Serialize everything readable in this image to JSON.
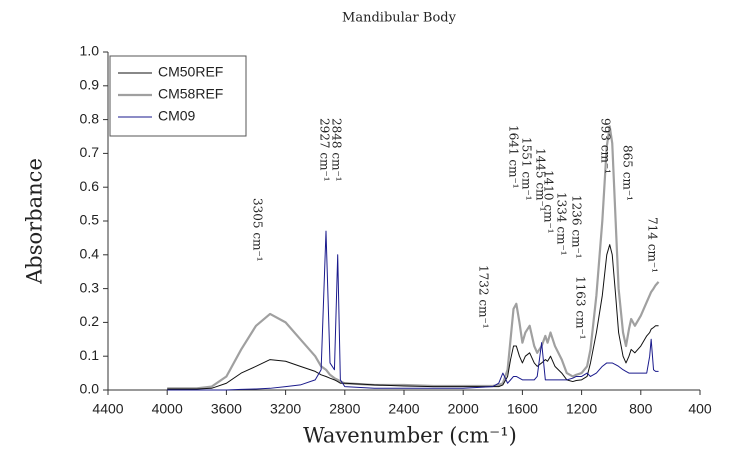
{
  "chart_data": {
    "type": "line",
    "title": "Mandibular Body",
    "x_label": "Wavenumber (cm⁻¹)",
    "y_label": "Absorbance",
    "xlim": [
      4400,
      400
    ],
    "xticks": [
      4400,
      4000,
      3600,
      3200,
      2800,
      2400,
      2000,
      1600,
      1200,
      800,
      400
    ],
    "ylim": [
      0,
      1
    ],
    "yticks": [
      {
        "value": 0,
        "label": "0.0"
      },
      0.1,
      0.2,
      0.3,
      0.4,
      0.5,
      0.6,
      0.7,
      0.8,
      0.9,
      {
        "value": 1,
        "label": "1.0"
      }
    ],
    "legend": "upper left",
    "grid": false,
    "x": [
      4000,
      3800,
      3700,
      3600,
      3500,
      3400,
      3305,
      3200,
      3100,
      3000,
      2960,
      2927,
      2900,
      2870,
      2848,
      2830,
      2800,
      2600,
      2400,
      2200,
      2000,
      1800,
      1760,
      1732,
      1700,
      1680,
      1660,
      1641,
      1620,
      1600,
      1580,
      1551,
      1520,
      1500,
      1470,
      1445,
      1430,
      1410,
      1380,
      1334,
      1300,
      1260,
      1236,
      1200,
      1163,
      1140,
      1100,
      1060,
      1030,
      1010,
      993,
      970,
      950,
      920,
      900,
      880,
      865,
      840,
      800,
      760,
      740,
      730,
      714,
      700,
      680
    ],
    "series": [
      {
        "name": "CM50REF",
        "color": "#111111",
        "width": 1,
        "values": [
          0.003,
          0.003,
          0.005,
          0.02,
          0.05,
          0.07,
          0.09,
          0.085,
          0.07,
          0.055,
          0.045,
          0.04,
          0.035,
          0.03,
          0.025,
          0.02,
          0.02,
          0.015,
          0.012,
          0.01,
          0.01,
          0.01,
          0.01,
          0.015,
          0.04,
          0.09,
          0.13,
          0.13,
          0.1,
          0.08,
          0.1,
          0.11,
          0.08,
          0.07,
          0.08,
          0.09,
          0.085,
          0.1,
          0.07,
          0.05,
          0.03,
          0.025,
          0.028,
          0.03,
          0.04,
          0.08,
          0.17,
          0.28,
          0.4,
          0.43,
          0.4,
          0.28,
          0.17,
          0.1,
          0.08,
          0.1,
          0.12,
          0.11,
          0.13,
          0.16,
          0.17,
          0.18,
          0.185,
          0.19,
          0.19
        ]
      },
      {
        "name": "CM58REF",
        "color": "#a0a0a0",
        "width": 2.2,
        "values": [
          0.005,
          0.005,
          0.01,
          0.04,
          0.12,
          0.19,
          0.225,
          0.2,
          0.15,
          0.1,
          0.07,
          0.06,
          0.045,
          0.035,
          0.03,
          0.025,
          0.02,
          0.015,
          0.015,
          0.012,
          0.012,
          0.012,
          0.015,
          0.02,
          0.06,
          0.15,
          0.24,
          0.255,
          0.2,
          0.14,
          0.17,
          0.19,
          0.13,
          0.11,
          0.13,
          0.16,
          0.14,
          0.17,
          0.13,
          0.09,
          0.05,
          0.04,
          0.045,
          0.05,
          0.07,
          0.12,
          0.28,
          0.5,
          0.72,
          0.78,
          0.73,
          0.5,
          0.3,
          0.17,
          0.13,
          0.18,
          0.21,
          0.19,
          0.22,
          0.26,
          0.28,
          0.29,
          0.3,
          0.31,
          0.32
        ]
      },
      {
        "name": "CM09",
        "color": "#1a1a8c",
        "width": 1,
        "values": [
          0,
          0,
          0,
          0,
          0.002,
          0.003,
          0.005,
          0.01,
          0.015,
          0.03,
          0.06,
          0.47,
          0.08,
          0.06,
          0.4,
          0.03,
          0.01,
          0.005,
          0.005,
          0.005,
          0.005,
          0.01,
          0.02,
          0.05,
          0.02,
          0.03,
          0.04,
          0.04,
          0.035,
          0.03,
          0.03,
          0.03,
          0.03,
          0.04,
          0.14,
          0.03,
          0.03,
          0.03,
          0.03,
          0.03,
          0.03,
          0.035,
          0.04,
          0.04,
          0.05,
          0.04,
          0.05,
          0.07,
          0.08,
          0.08,
          0.08,
          0.075,
          0.07,
          0.06,
          0.055,
          0.05,
          0.05,
          0.05,
          0.05,
          0.05,
          0.1,
          0.15,
          0.06,
          0.055,
          0.055
        ]
      }
    ],
    "annotations": [
      "3305 cm⁻¹",
      "2848 cm⁻¹",
      "2927 cm⁻¹",
      "1641 cm⁻¹",
      "1551 cm⁻¹",
      "1445 cm⁻¹",
      "1410 cm⁻¹",
      "1334 cm⁻¹",
      "1236 cm⁻¹",
      "1163 cm⁻¹",
      "993 cm⁻¹",
      "865 cm⁻¹",
      "714 cm⁻¹",
      "1732 cm⁻¹"
    ]
  }
}
